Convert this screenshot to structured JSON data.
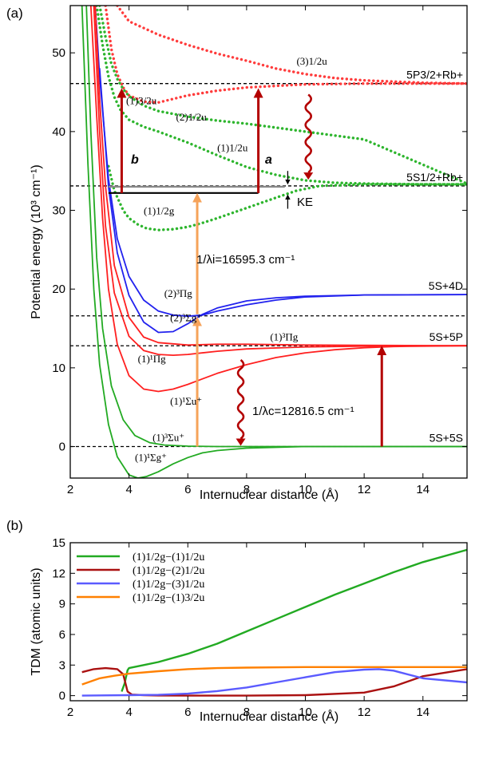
{
  "chart_data": [
    {
      "panel_label": "(a)",
      "type": "line",
      "xlabel": "Internuclear distance (Å)",
      "ylabel": "Potential energy (10³ cm⁻¹)",
      "xlim": [
        2,
        15.5
      ],
      "ylim": [
        -4,
        56
      ],
      "x_ticks": [
        2,
        4,
        6,
        8,
        10,
        12,
        14
      ],
      "y_ticks": [
        0,
        10,
        20,
        30,
        40,
        50
      ],
      "asymptotes": [
        {
          "label": "5P3/2+Rb+",
          "value": 46.1
        },
        {
          "label": "5S1/2+Rb+",
          "value": 33.1
        },
        {
          "label": "5S+4D",
          "value": 19.3
        },
        {
          "label": "5S+5P",
          "value": 12.8
        },
        {
          "label": "5S+5S",
          "value": 0
        }
      ],
      "dashed_levels": [
        46.1,
        33.1,
        16.6,
        12.8,
        0
      ],
      "series": [
        {
          "name": "(3)1/2u",
          "color": "#ff3b3b",
          "style": "dotted",
          "x": [
            3.6,
            4.0,
            5.0,
            6.0,
            7.0,
            8.0,
            9.0,
            10.0,
            11.0,
            12.0,
            14.0,
            15.5
          ],
          "y": [
            56,
            54,
            52.3,
            51.0,
            49.9,
            49.0,
            48.0,
            47.3,
            46.8,
            46.5,
            46.2,
            46.1
          ]
        },
        {
          "name": "(1)3/2u",
          "color": "#ff3b3b",
          "style": "dotted",
          "x": [
            3.2,
            3.4,
            3.6,
            3.8,
            4.0,
            4.5,
            5.0,
            6.0,
            7.0,
            8.0,
            9.0,
            10.0,
            12.0,
            14.0,
            15.5
          ],
          "y": [
            56,
            50.5,
            47.3,
            45.6,
            44.6,
            43.8,
            43.7,
            44.6,
            45.2,
            45.6,
            45.8,
            46.0,
            46.1,
            46.1,
            46.1
          ]
        },
        {
          "name": "(2)1/2u",
          "color": "#2db52d",
          "style": "dotted",
          "x": [
            3.0,
            3.2,
            3.4,
            3.6,
            3.8,
            4.0,
            4.5,
            5.0,
            6.0,
            7.0,
            8.0,
            9.0,
            10.0,
            12.0,
            15.5
          ],
          "y": [
            56,
            52,
            48.6,
            46.7,
            45.4,
            44.5,
            43.3,
            42.6,
            41.9,
            41.4,
            41.0,
            40.5,
            40.0,
            39.0,
            33.4
          ]
        },
        {
          "name": "(1)1/2u",
          "color": "#2db52d",
          "style": "dotted",
          "x": [
            2.9,
            3.1,
            3.3,
            3.5,
            3.7,
            4.0,
            4.5,
            5.0,
            6.0,
            7.0,
            8.0,
            9.0,
            10.0,
            11.0,
            12.0,
            14.0,
            15.5
          ],
          "y": [
            56,
            51,
            47.0,
            44.4,
            42.8,
            41.5,
            40.6,
            40.0,
            38.6,
            37.0,
            35.5,
            34.5,
            33.8,
            33.5,
            33.4,
            33.3,
            33.3
          ]
        },
        {
          "name": "(1)1/2g",
          "color": "#2db52d",
          "style": "dotted",
          "x": [
            3.3,
            3.5,
            3.8,
            4.0,
            4.3,
            4.6,
            5.0,
            5.5,
            6.0,
            6.5,
            7.0,
            8.0,
            9.0,
            9.7,
            10.5,
            12.0,
            15.5
          ],
          "y": [
            35.6,
            32.5,
            30.0,
            29.0,
            28.2,
            27.7,
            27.5,
            27.6,
            27.9,
            28.4,
            29.0,
            30.3,
            31.6,
            32.5,
            33.1,
            33.3,
            33.3
          ]
        },
        {
          "name": "(2)³Πg",
          "color": "#2222ee",
          "style": "solid",
          "x": [
            2.85,
            3.0,
            3.3,
            3.6,
            4.0,
            4.5,
            5.0,
            5.5,
            6.0,
            6.5,
            7.0,
            8.0,
            9.0,
            10.0,
            12.0,
            15.5
          ],
          "y": [
            56,
            47,
            34,
            26.4,
            21.6,
            18.6,
            17.2,
            16.7,
            16.55,
            16.7,
            17.2,
            18.0,
            18.6,
            19.0,
            19.25,
            19.3
          ]
        },
        {
          "name": "(2)³Σg⁺",
          "color": "#2222ee",
          "style": "solid",
          "x": [
            3.0,
            3.3,
            3.6,
            4.0,
            4.5,
            5.0,
            5.5,
            6.0,
            6.5,
            7.0,
            8.0,
            9.0,
            10.0,
            12.0,
            15.5
          ],
          "y": [
            48,
            33,
            24.6,
            19.2,
            15.8,
            14.5,
            14.6,
            15.6,
            16.8,
            17.6,
            18.5,
            18.9,
            19.1,
            19.25,
            19.3
          ]
        },
        {
          "name": "(1)³Πg",
          "color": "#ff2020",
          "style": "solid",
          "x": [
            2.85,
            3.0,
            3.2,
            3.5,
            4.0,
            4.5,
            5.0,
            6.0,
            7.0,
            8.0,
            9.0,
            10.0,
            12.0,
            15.5
          ],
          "y": [
            56,
            44,
            33,
            23,
            16.4,
            13.9,
            13.2,
            12.9,
            13.0,
            13.0,
            12.95,
            12.9,
            12.85,
            12.8
          ]
        },
        {
          "name": "(1)¹Πg",
          "color": "#ff2020",
          "style": "solid",
          "x": [
            2.8,
            3.0,
            3.2,
            3.5,
            4.0,
            4.5,
            5.0,
            5.5,
            6.0,
            7.0,
            8.0,
            10.0,
            12.0,
            15.5
          ],
          "y": [
            56,
            40,
            28,
            19.5,
            14.0,
            12.2,
            11.7,
            11.6,
            11.7,
            12.1,
            12.4,
            12.65,
            12.75,
            12.8
          ]
        },
        {
          "name": "(1)¹Σu⁺",
          "color": "#ff2020",
          "style": "solid",
          "x": [
            2.7,
            2.9,
            3.1,
            3.3,
            3.6,
            4.0,
            4.5,
            5.0,
            5.5,
            6.0,
            7.0,
            8.0,
            9.0,
            10.0,
            11.0,
            12.0,
            13.0,
            15.5
          ],
          "y": [
            56,
            42,
            29,
            20,
            13.0,
            9.0,
            7.3,
            7.0,
            7.3,
            7.9,
            9.3,
            10.4,
            11.3,
            11.9,
            12.3,
            12.55,
            12.7,
            12.8
          ]
        },
        {
          "name": "(1)³Σu⁺",
          "color": "#22aa22",
          "style": "solid",
          "x": [
            2.55,
            2.7,
            2.9,
            3.1,
            3.4,
            3.8,
            4.2,
            4.7,
            5.2,
            6.0,
            7.0,
            8.0,
            10.0,
            15.5
          ],
          "y": [
            56,
            40,
            24,
            15,
            7.7,
            3.4,
            1.4,
            0.5,
            0.2,
            0.05,
            0.0,
            0.0,
            0.0,
            0.0
          ]
        },
        {
          "name": "(1)¹Σg⁺",
          "color": "#22aa22",
          "style": "solid",
          "x": [
            2.4,
            2.6,
            2.8,
            3.0,
            3.3,
            3.6,
            4.0,
            4.3,
            4.6,
            5.0,
            5.5,
            6.0,
            6.5,
            7.0,
            8.0,
            9.0,
            10.0,
            12.0,
            15.5
          ],
          "y": [
            56,
            36,
            20,
            10.4,
            2.8,
            -1.3,
            -3.6,
            -4.0,
            -3.8,
            -3.2,
            -2.2,
            -1.4,
            -0.8,
            -0.5,
            -0.2,
            -0.1,
            0.0,
            0.0,
            0.0
          ]
        }
      ],
      "curve_labels": [
        {
          "text": "(3)1/2u",
          "x": 9.7,
          "y": 48.5
        },
        {
          "text": "(1)3/2u",
          "x": 3.9,
          "y": 43.5
        },
        {
          "text": "(2)1/2u",
          "x": 5.6,
          "y": 41.4
        },
        {
          "text": "(1)1/2u",
          "x": 7.0,
          "y": 37.5
        },
        {
          "text": "(1)1/2g",
          "x": 4.5,
          "y": 29.5
        },
        {
          "text": "(2)³Πg",
          "x": 5.2,
          "y": 19.0
        },
        {
          "text": "(2)³Σg⁺",
          "x": 5.4,
          "y": 15.9
        },
        {
          "text": "(1)³Πg",
          "x": 8.8,
          "y": 13.5
        },
        {
          "text": "(1)¹Πg",
          "x": 4.3,
          "y": 10.7
        },
        {
          "text": "(1)¹Σu⁺",
          "x": 5.4,
          "y": 5.3
        },
        {
          "text": "(1)³Σu⁺",
          "x": 4.8,
          "y": 0.7
        },
        {
          "text": "(1)¹Σg⁺",
          "x": 4.2,
          "y": -1.8
        }
      ],
      "annotations": {
        "a_label": "a",
        "b_label": "b",
        "ke_label": "KE",
        "lambda_i": "1/λi=16595.3 cm⁻¹",
        "lambda_c": "1/λc=12816.5 cm⁻¹"
      }
    },
    {
      "panel_label": "(b)",
      "type": "line",
      "xlabel": "Internuclear distance (Å)",
      "ylabel": "TDM (atomic units)",
      "xlim": [
        2,
        15.5
      ],
      "ylim": [
        -0.5,
        15
      ],
      "x_ticks": [
        2,
        4,
        6,
        8,
        10,
        12,
        14
      ],
      "y_ticks": [
        0,
        3,
        6,
        9,
        12,
        15
      ],
      "series": [
        {
          "name": "(1)1/2g−(1)1/2u",
          "color": "#22aa22",
          "x": [
            3.75,
            3.85,
            3.95,
            4.0,
            4.5,
            5.0,
            6.0,
            7.0,
            8.0,
            9.0,
            10.0,
            11.0,
            12.0,
            13.0,
            14.0,
            15.5
          ],
          "y": [
            0.4,
            1.2,
            2.5,
            2.7,
            3.0,
            3.3,
            4.1,
            5.1,
            6.3,
            7.5,
            8.7,
            9.9,
            11.0,
            12.1,
            13.1,
            14.3
          ]
        },
        {
          "name": "(1)1/2g−(2)1/2u",
          "color": "#aa1111",
          "x": [
            2.4,
            2.8,
            3.2,
            3.6,
            3.8,
            3.95,
            4.1,
            4.5,
            5.0,
            6.0,
            7.0,
            8.0,
            10.0,
            12.0,
            13.0,
            14.0,
            15.5
          ],
          "y": [
            2.3,
            2.6,
            2.7,
            2.6,
            2.1,
            0.4,
            0.1,
            0.05,
            0.02,
            0.0,
            0.0,
            0.0,
            0.05,
            0.3,
            0.9,
            1.9,
            2.6
          ]
        },
        {
          "name": "(1)1/2g−(3)1/2u",
          "color": "#5b5bff",
          "x": [
            2.4,
            4.0,
            5.0,
            6.0,
            7.0,
            8.0,
            9.0,
            10.0,
            11.0,
            12.0,
            12.5,
            13.0,
            14.0,
            15.5
          ],
          "y": [
            0.0,
            0.05,
            0.08,
            0.2,
            0.45,
            0.8,
            1.3,
            1.8,
            2.3,
            2.55,
            2.6,
            2.45,
            1.7,
            1.3
          ]
        },
        {
          "name": "(1)1/2g−(1)3/2u",
          "color": "#ff8000",
          "x": [
            2.4,
            3.0,
            3.5,
            4.0,
            5.0,
            6.0,
            7.0,
            8.0,
            10.0,
            12.0,
            14.0,
            15.5
          ],
          "y": [
            1.1,
            1.7,
            1.95,
            2.15,
            2.4,
            2.6,
            2.7,
            2.75,
            2.8,
            2.8,
            2.8,
            2.8
          ]
        }
      ]
    }
  ]
}
